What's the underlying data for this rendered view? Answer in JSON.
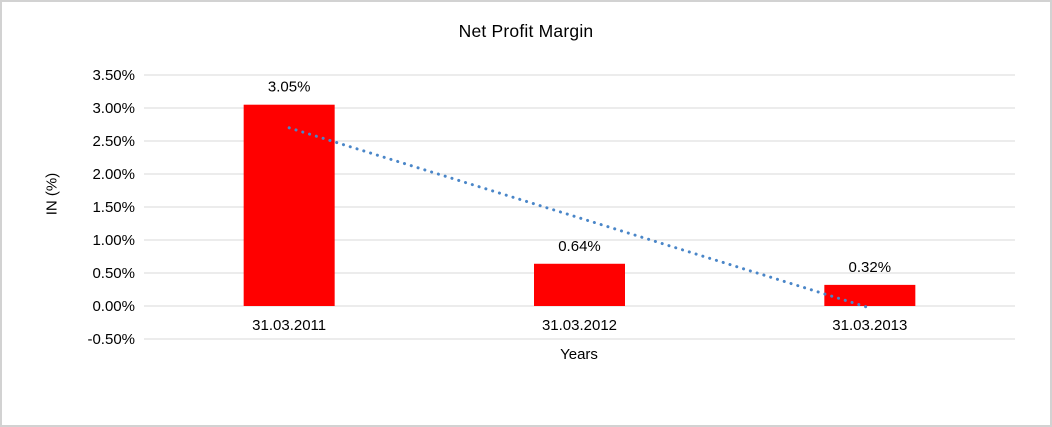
{
  "chart_data": {
    "type": "bar",
    "title": "Net Profit Margin",
    "categories": [
      "31.03.2011",
      "31.03.2012",
      "31.03.2013"
    ],
    "values": [
      3.05,
      0.64,
      0.32
    ],
    "data_labels": [
      "3.05%",
      "0.64%",
      "0.32%"
    ],
    "xlabel": "Years",
    "ylabel": "IN (%)",
    "ylim": [
      -0.5,
      3.5
    ],
    "ytick_step": 0.5,
    "ytick_labels": [
      "3.50%",
      "3.00%",
      "2.50%",
      "2.00%",
      "1.50%",
      "1.00%",
      "0.50%",
      "0.00%",
      "-0.50%"
    ],
    "grid": true,
    "legend": false,
    "bar_color": "#FF0000",
    "gridline_color": "#D9D9D9",
    "text_color": "#000000",
    "trendline": {
      "type": "linear",
      "style": "dotted",
      "color": "#4A86C8",
      "start_value": 2.7,
      "end_value": -0.03
    }
  }
}
